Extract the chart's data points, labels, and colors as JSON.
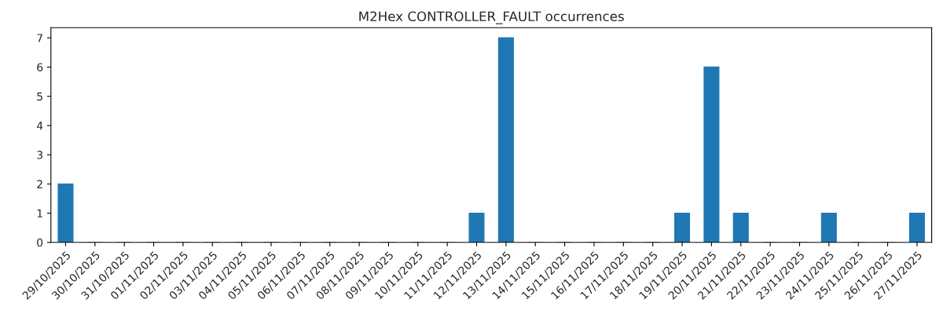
{
  "chart_data": {
    "type": "bar",
    "title": "M2Hex CONTROLLER_FAULT occurrences",
    "categories": [
      "29/10/2025",
      "30/10/2025",
      "31/10/2025",
      "01/11/2025",
      "02/11/2025",
      "03/11/2025",
      "04/11/2025",
      "05/11/2025",
      "06/11/2025",
      "07/11/2025",
      "08/11/2025",
      "09/11/2025",
      "10/11/2025",
      "11/11/2025",
      "12/11/2025",
      "13/11/2025",
      "14/11/2025",
      "15/11/2025",
      "16/11/2025",
      "17/11/2025",
      "18/11/2025",
      "19/11/2025",
      "20/11/2025",
      "21/11/2025",
      "22/11/2025",
      "23/11/2025",
      "24/11/2025",
      "25/11/2025",
      "26/11/2025",
      "27/11/2025"
    ],
    "values": [
      2,
      0,
      0,
      0,
      0,
      0,
      0,
      0,
      0,
      0,
      0,
      0,
      0,
      0,
      1,
      7,
      0,
      0,
      0,
      0,
      0,
      1,
      6,
      1,
      0,
      0,
      1,
      0,
      0,
      1
    ],
    "color": "#1f77b4",
    "ylim": [
      0,
      7.35
    ],
    "yticks": [
      0,
      1,
      2,
      3,
      4,
      5,
      6,
      7
    ],
    "grid": false,
    "legend": false
  }
}
